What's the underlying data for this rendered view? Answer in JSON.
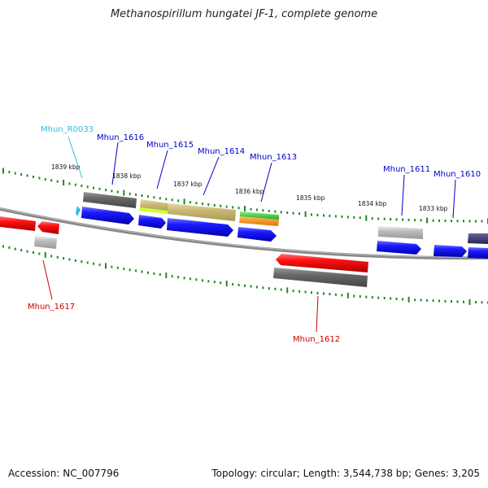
{
  "title": "Methanospirillum hungatei JF-1, complete genome",
  "accession": "Accession: NC_007796",
  "summary": "Topology: circular; Length: 3,544,738 bp; Genes: 3,205",
  "scale_labels": [
    "1839 kbp",
    "1838 kbp",
    "1837 kbp",
    "1836 kbp",
    "1835 kbp",
    "1834 kbp",
    "1833 kbp"
  ],
  "gene_labels": [
    {
      "name": "Mhun_R0033",
      "color": "#33bbdd"
    },
    {
      "name": "Mhun_1616",
      "color": "#0000cc"
    },
    {
      "name": "Mhun_1615",
      "color": "#0000cc"
    },
    {
      "name": "Mhun_1614",
      "color": "#0000cc"
    },
    {
      "name": "Mhun_1613",
      "color": "#0000cc"
    },
    {
      "name": "Mhun_1611",
      "color": "#0000cc"
    },
    {
      "name": "Mhun_1610",
      "color": "#0000cc"
    },
    {
      "name": "Mhun_1617",
      "color": "#cc0000"
    },
    {
      "name": "Mhun_1612",
      "color": "#cc0000"
    }
  ],
  "colors": {
    "forward_gene": "#0000ee",
    "reverse_gene": "#ee0000",
    "tick": "#228822",
    "backbone": "#888888",
    "cog_gray": "#666666",
    "cog_light": "#bbbbbb",
    "cog_olive": "#c8b870",
    "cog_green": "#33cc33",
    "cog_orange": "#ee8800",
    "cog_navy": "#333366"
  }
}
